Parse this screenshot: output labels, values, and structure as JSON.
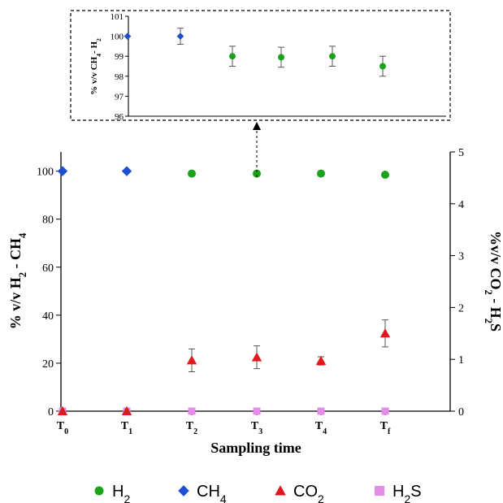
{
  "chart_data": [
    {
      "id": "main",
      "type": "scatter",
      "xlabel": "Sampling time",
      "categories": [
        {
          "main": "T",
          "sub": "0"
        },
        {
          "main": "T",
          "sub": "1"
        },
        {
          "main": "T",
          "sub": "2"
        },
        {
          "main": "T",
          "sub": "3"
        },
        {
          "main": "T",
          "sub": "4"
        },
        {
          "main": "T",
          "sub": "f"
        }
      ],
      "y_left": {
        "label_parts": [
          "% v/v H",
          "2",
          " - CH",
          "4"
        ],
        "ylim": [
          0,
          108
        ],
        "ticks": [
          0,
          20,
          40,
          60,
          80,
          100
        ]
      },
      "y_right": {
        "label_parts": [
          "%v/v CO",
          "2",
          " - H",
          "2",
          "S"
        ],
        "ylim": [
          0,
          5
        ],
        "ticks": [
          0,
          1,
          2,
          3,
          4,
          5
        ]
      },
      "series": [
        {
          "name_parts": [
            "H",
            "2"
          ],
          "color": "#1aa31a",
          "marker": "circle",
          "axis": "left",
          "values": [
            null,
            null,
            99,
            99,
            99,
            98.5
          ]
        },
        {
          "name_parts": [
            "CH",
            "4"
          ],
          "color": "#1f4fd1",
          "marker": "diamond",
          "axis": "left",
          "values": [
            100,
            100,
            null,
            null,
            null,
            null
          ]
        },
        {
          "name_parts": [
            "CO",
            "2"
          ],
          "color": "#e0191e",
          "marker": "triangle",
          "axis": "right",
          "values": [
            0,
            0,
            0.98,
            1.04,
            0.97,
            1.5
          ],
          "errors": [
            0,
            0,
            0.22,
            0.22,
            0.08,
            0.26
          ]
        },
        {
          "name_parts": [
            "H",
            "2",
            "S"
          ],
          "color": "#e38ce8",
          "marker": "square",
          "axis": "right",
          "values": [
            0,
            0,
            0,
            0,
            0,
            0
          ]
        }
      ]
    },
    {
      "id": "inset",
      "type": "scatter",
      "ylabel_parts": [
        "% v/v CH",
        "4",
        "- H",
        "2"
      ],
      "ylim": [
        96,
        101
      ],
      "ticks": [
        96,
        97,
        98,
        99,
        100,
        101
      ],
      "series": [
        {
          "color": "#1f4fd1",
          "marker": "diamond",
          "values": [
            100,
            100,
            null,
            null,
            null,
            null
          ],
          "errors": [
            0,
            0.4,
            0,
            0,
            0,
            0
          ]
        },
        {
          "color": "#1aa31a",
          "marker": "circle",
          "values": [
            null,
            null,
            99,
            98.95,
            99,
            98.5
          ],
          "errors": [
            0,
            0,
            0.5,
            0.5,
            0.5,
            0.5
          ]
        }
      ]
    }
  ]
}
